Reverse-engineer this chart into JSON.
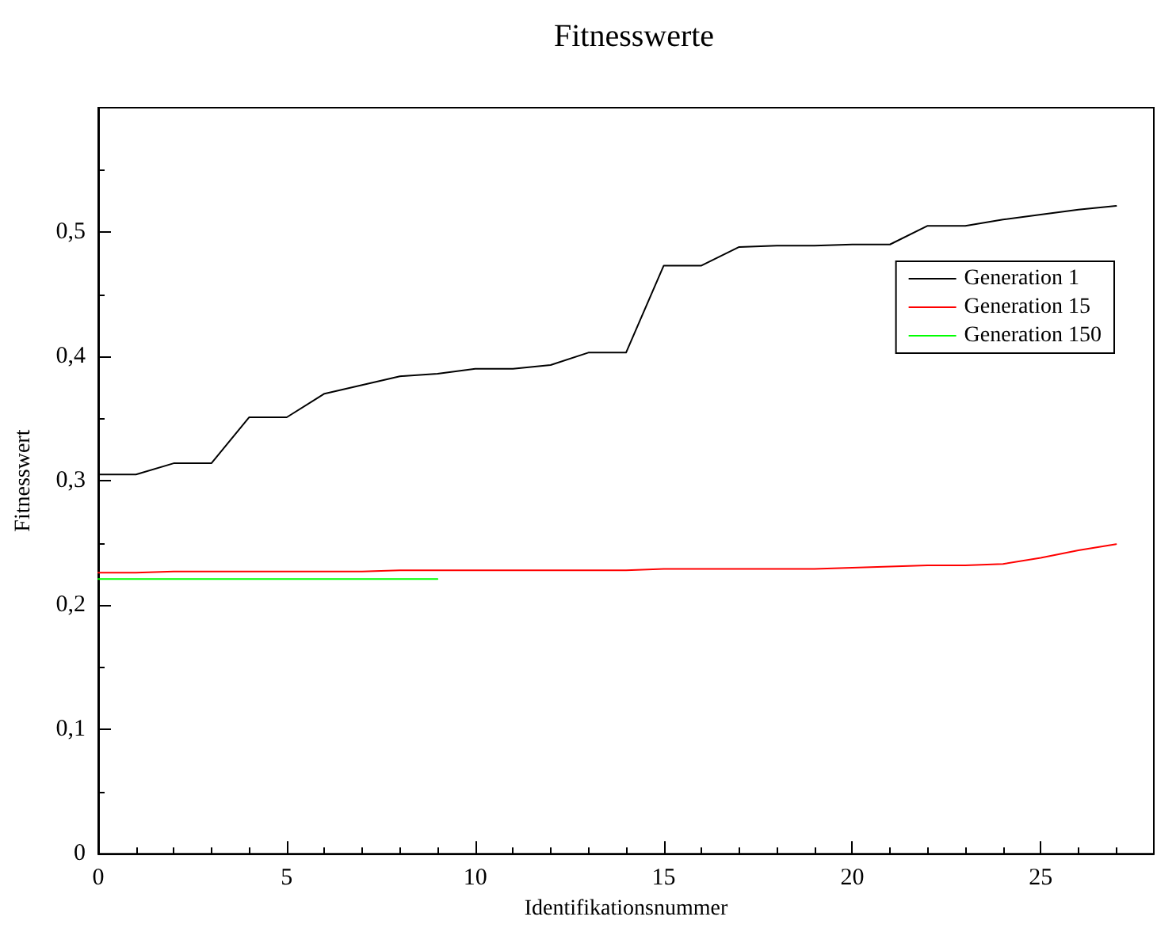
{
  "chart_data": {
    "type": "line",
    "title": "Fitnesswerte",
    "xlabel": "Identifikationsnummer",
    "ylabel": "Fitnesswert",
    "x": [
      0,
      1,
      2,
      3,
      4,
      5,
      6,
      7,
      8,
      9,
      10,
      11,
      12,
      13,
      14,
      15,
      16,
      17,
      18,
      19,
      20,
      21,
      22,
      23,
      24,
      25,
      26,
      27
    ],
    "series": [
      {
        "name": "Generation 1",
        "color": "#000000",
        "values": [
          0.305,
          0.305,
          0.314,
          0.314,
          0.351,
          0.351,
          0.37,
          0.377,
          0.384,
          0.386,
          0.39,
          0.39,
          0.393,
          0.403,
          0.403,
          0.473,
          0.473,
          0.488,
          0.489,
          0.489,
          0.49,
          0.49,
          0.505,
          0.505,
          0.51,
          0.514,
          0.518,
          0.521
        ]
      },
      {
        "name": "Generation 15",
        "color": "#ff0000",
        "values": [
          0.226,
          0.226,
          0.227,
          0.227,
          0.227,
          0.227,
          0.227,
          0.227,
          0.228,
          0.228,
          0.228,
          0.228,
          0.228,
          0.228,
          0.228,
          0.229,
          0.229,
          0.229,
          0.229,
          0.229,
          0.23,
          0.231,
          0.232,
          0.232,
          0.233,
          0.238,
          0.244,
          0.249
        ]
      },
      {
        "name": "Generation 150",
        "color": "#00ff00",
        "x": [
          0,
          9
        ],
        "values": [
          0.221,
          0.221
        ]
      }
    ],
    "xlim": [
      0,
      28
    ],
    "xticks": [
      0,
      5,
      10,
      15,
      20,
      25
    ],
    "ylim": [
      0,
      0.6
    ],
    "yticks": [
      {
        "value": 0,
        "label": "0"
      },
      {
        "value": 0.1,
        "label": "0,1"
      },
      {
        "value": 0.2,
        "label": "0,2"
      },
      {
        "value": 0.3,
        "label": "0,3"
      },
      {
        "value": 0.4,
        "label": "0,4"
      },
      {
        "value": 0.5,
        "label": "0,5"
      }
    ],
    "grid": false,
    "legend": "top right",
    "marker": "none",
    "line_style": "solid"
  }
}
